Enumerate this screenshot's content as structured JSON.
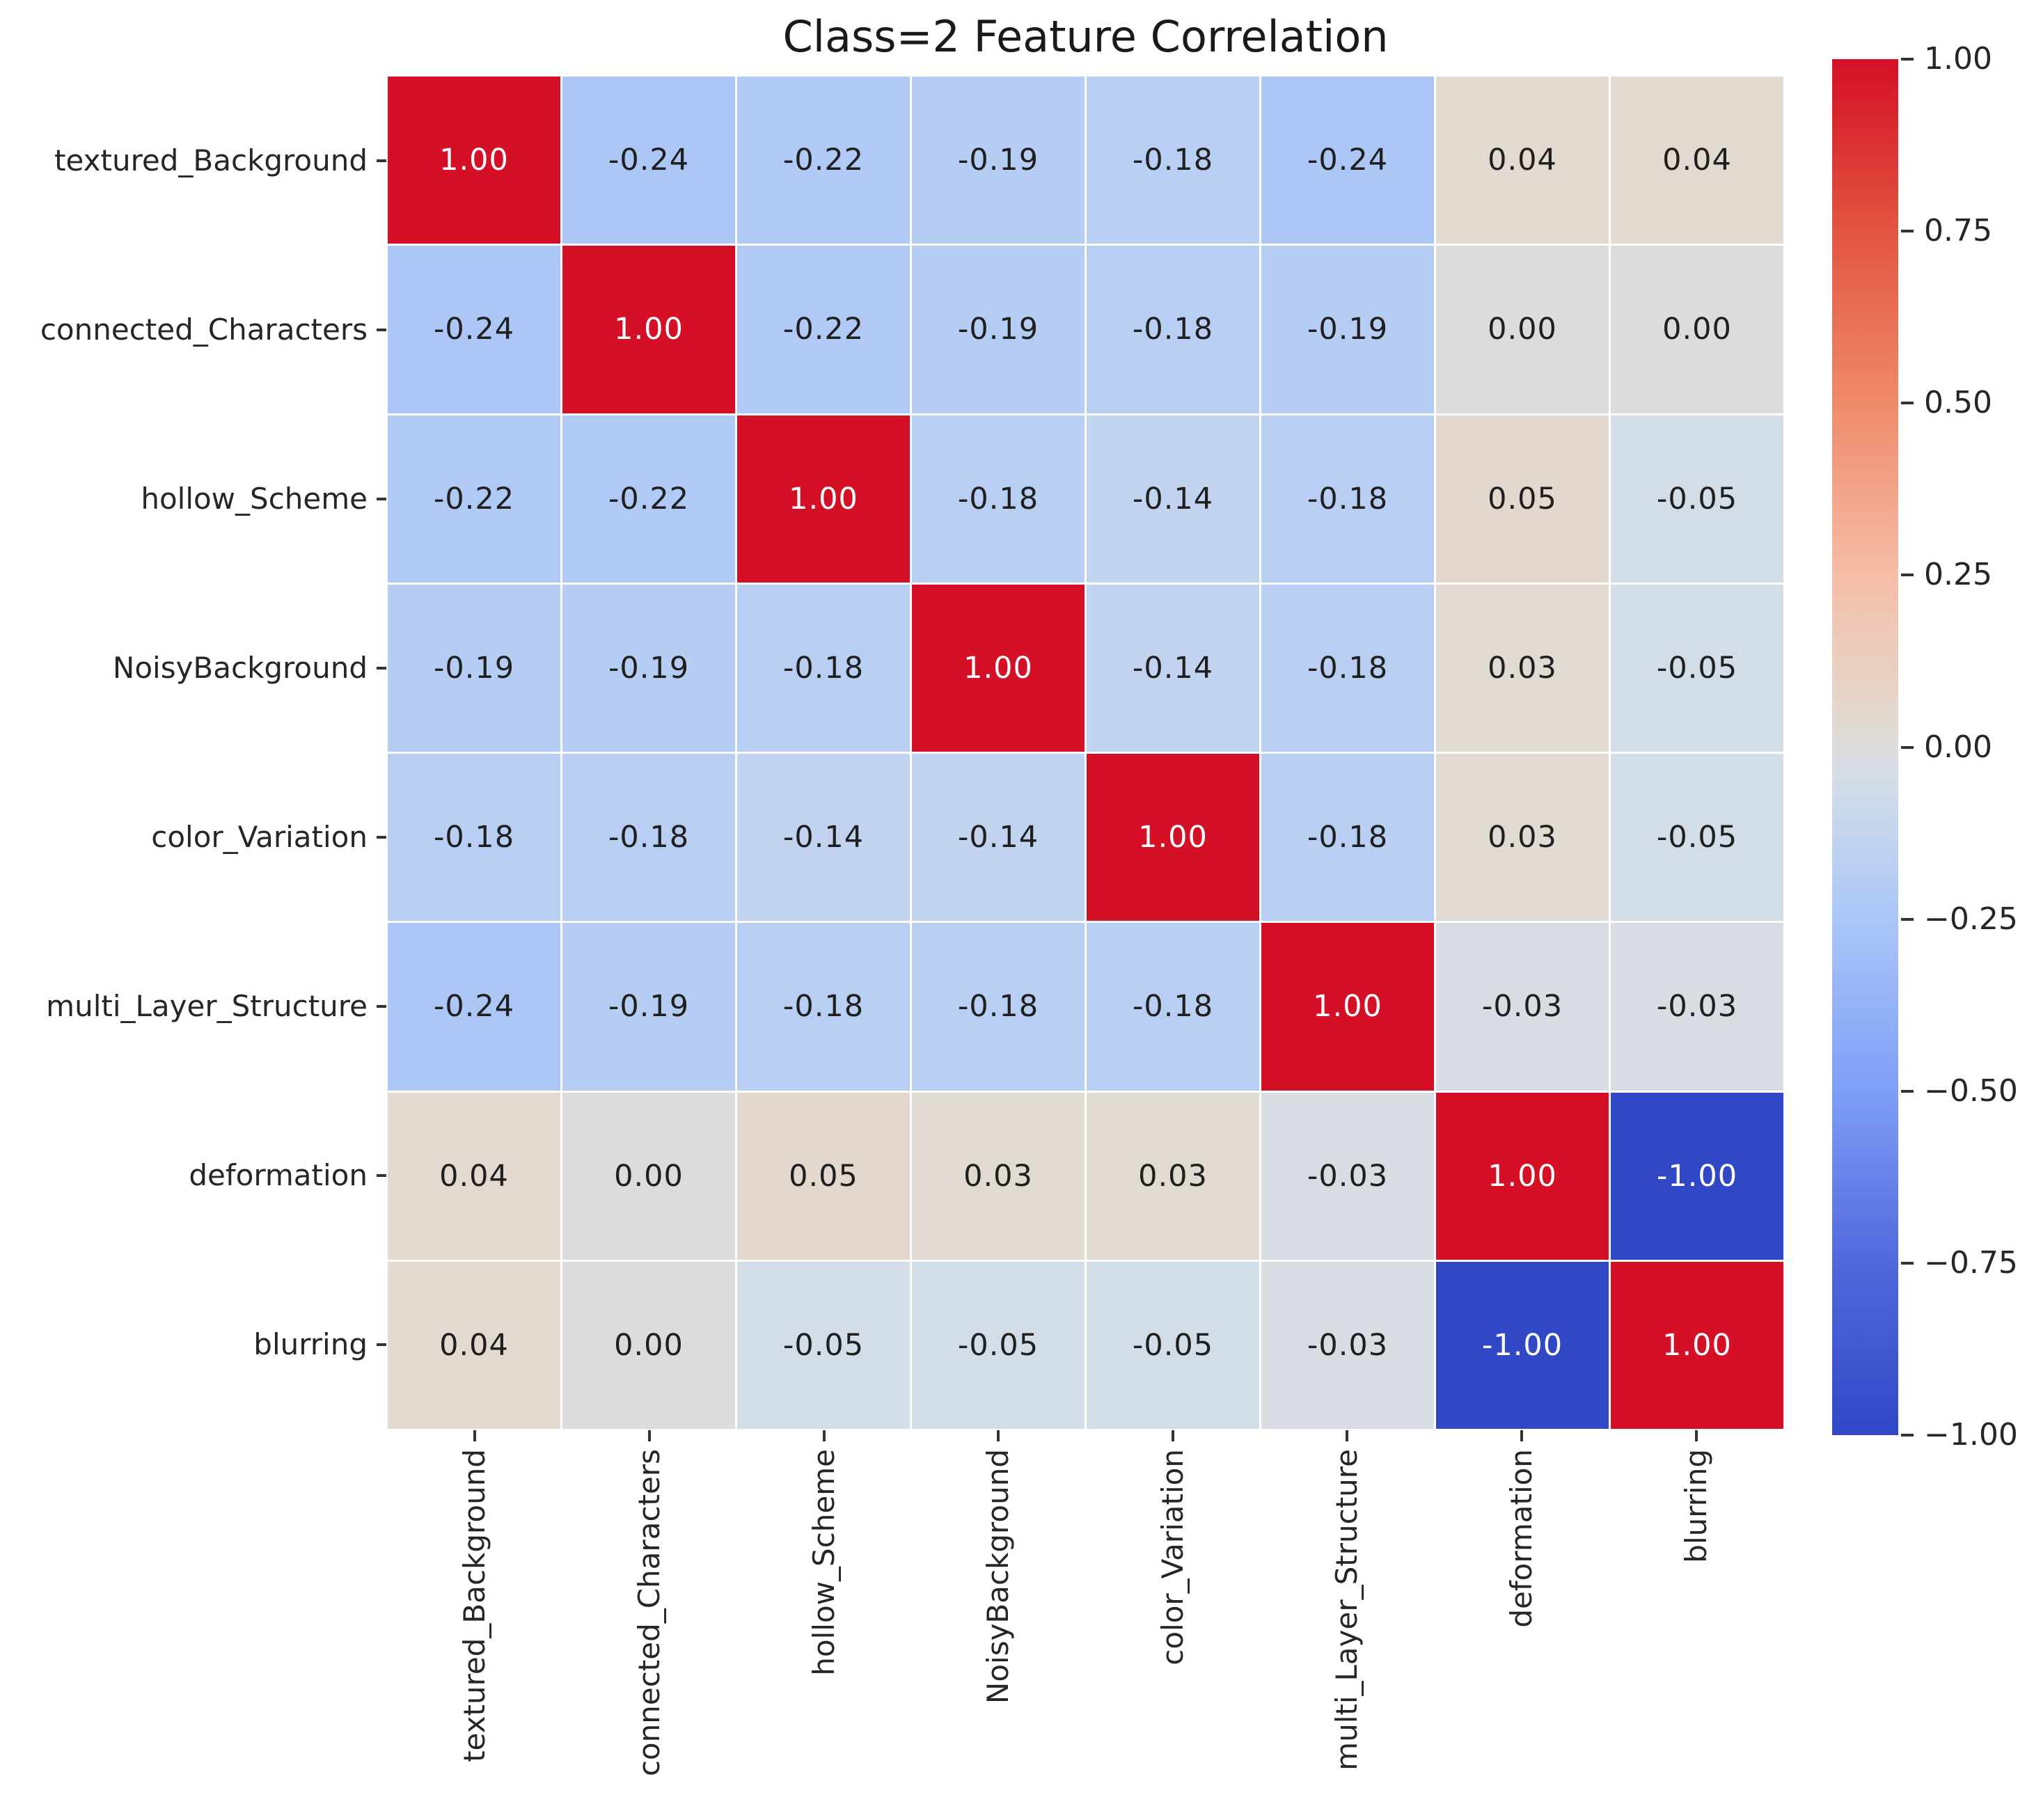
{
  "title": "Class=2 Feature Correlation",
  "chart_data": {
    "type": "heatmap",
    "title": "Class=2 Feature Correlation",
    "features": [
      "textured_Background",
      "connected_Characters",
      "hollow_Scheme",
      "NoisyBackground",
      "color_Variation",
      "multi_Layer_Structure",
      "deformation",
      "blurring"
    ],
    "matrix": [
      [
        1.0,
        -0.24,
        -0.22,
        -0.19,
        -0.18,
        -0.24,
        0.04,
        0.04
      ],
      [
        -0.24,
        1.0,
        -0.22,
        -0.19,
        -0.18,
        -0.19,
        0.0,
        0.0
      ],
      [
        -0.22,
        -0.22,
        1.0,
        -0.18,
        -0.14,
        -0.18,
        0.05,
        -0.05
      ],
      [
        -0.19,
        -0.19,
        -0.18,
        1.0,
        -0.14,
        -0.18,
        0.03,
        -0.05
      ],
      [
        -0.18,
        -0.18,
        -0.14,
        -0.14,
        1.0,
        -0.18,
        0.03,
        -0.05
      ],
      [
        -0.24,
        -0.19,
        -0.18,
        -0.18,
        -0.18,
        1.0,
        -0.03,
        -0.03
      ],
      [
        0.04,
        0.0,
        0.05,
        0.03,
        0.03,
        -0.03,
        1.0,
        -1.0
      ],
      [
        0.04,
        0.0,
        -0.05,
        -0.05,
        -0.05,
        -0.03,
        -1.0,
        1.0
      ]
    ],
    "value_decimals": 2,
    "gridlines": true,
    "colorbar": {
      "position": "right",
      "vmin": -1.0,
      "vmax": 1.0,
      "tick_values": [
        1.0,
        0.75,
        0.5,
        0.25,
        0.0,
        -0.25,
        -0.5,
        -0.75,
        -1.0
      ],
      "tick_labels": [
        "1.00",
        "0.75",
        "0.50",
        "0.25",
        "0.00",
        "−0.25",
        "−0.50",
        "−0.75",
        "−1.00"
      ]
    },
    "colormap": {
      "name": "coolwarm",
      "anchors": [
        {
          "v": -1.0,
          "color": "#3148c6"
        },
        {
          "v": -0.75,
          "color": "#5168dc"
        },
        {
          "v": -0.5,
          "color": "#7f9ef7"
        },
        {
          "v": -0.25,
          "color": "#aac6f7"
        },
        {
          "v": -0.05,
          "color": "#d3dde8"
        },
        {
          "v": 0.0,
          "color": "#dcdcdc"
        },
        {
          "v": 0.05,
          "color": "#e3d8cd"
        },
        {
          "v": 0.25,
          "color": "#f5bda7"
        },
        {
          "v": 0.5,
          "color": "#ef8a6b"
        },
        {
          "v": 0.75,
          "color": "#e25540"
        },
        {
          "v": 1.0,
          "color": "#d50f26"
        }
      ]
    },
    "annotation_text_colors": {
      "light": "#ffffff",
      "dark": "#1f1f1f"
    }
  }
}
